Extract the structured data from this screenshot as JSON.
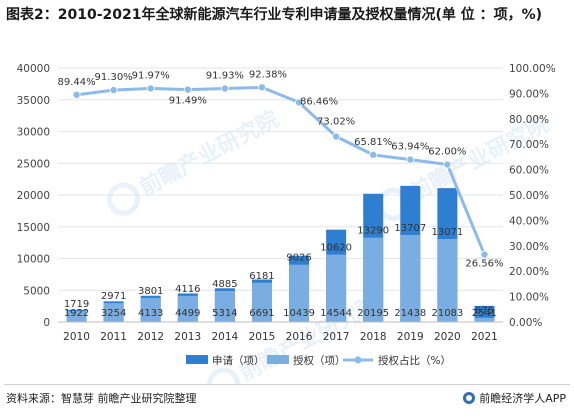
{
  "title": "图表2：2010-2021年全球新能源汽车行业专利申请量及授权量情况(单 位 ：项，%)",
  "source": "资料来源：智慧芽 前瞻产业研究院整理",
  "brand": "前瞻经济学人APP",
  "watermark": "前瞻产业研究院",
  "colors": {
    "applications": "#2e7fd1",
    "grants": "#7aaee3",
    "ratio": "#8dbbe9"
  },
  "chart_data": {
    "type": "bar",
    "categories": [
      "2010",
      "2011",
      "2012",
      "2013",
      "2014",
      "2015",
      "2016",
      "2017",
      "2018",
      "2019",
      "2020",
      "2021"
    ],
    "series": [
      {
        "name": "申请（项）",
        "type": "bar",
        "values": [
          1922,
          3254,
          4133,
          4499,
          5314,
          6691,
          10439,
          14544,
          20195,
          21438,
          21083,
          2541
        ]
      },
      {
        "name": "授权（项）",
        "type": "bar",
        "values": [
          1719,
          2971,
          3801,
          4116,
          4885,
          6181,
          9026,
          10620,
          13290,
          13707,
          13071,
          675
        ]
      },
      {
        "name": "授权占比（%）",
        "type": "line",
        "axis": "right",
        "values": [
          89.44,
          91.3,
          91.97,
          91.49,
          91.93,
          92.38,
          86.46,
          73.02,
          65.81,
          63.94,
          62.0,
          26.56
        ]
      }
    ],
    "grant_labels": [
      "1719",
      "2971",
      "3801",
      "4116",
      "4885",
      "6181",
      "9026",
      "10620",
      "13290",
      "13707",
      "13071",
      "675"
    ],
    "application_labels": [
      "1922",
      "3254",
      "4133",
      "4499",
      "5314",
      "6691",
      "10439",
      "14544",
      "20195",
      "21438",
      "21083",
      "2541"
    ],
    "ratio_labels": [
      "89.44%",
      "91.30%",
      "91.97%",
      "91.49%",
      "91.93%",
      "92.38%",
      "86.46%",
      "73.02%",
      "65.81%",
      "63.94%",
      "62.00%",
      "26.56%"
    ],
    "y_left": {
      "min": 0,
      "max": 40000,
      "ticks": [
        "0",
        "5000",
        "10000",
        "15000",
        "20000",
        "25000",
        "30000",
        "35000",
        "40000"
      ]
    },
    "y_right": {
      "min": 0,
      "max": 100,
      "ticks": [
        "0.00%",
        "10.00%",
        "20.00%",
        "30.00%",
        "40.00%",
        "50.00%",
        "60.00%",
        "70.00%",
        "80.00%",
        "90.00%",
        "100.00%"
      ]
    },
    "legend_position": "bottom"
  }
}
